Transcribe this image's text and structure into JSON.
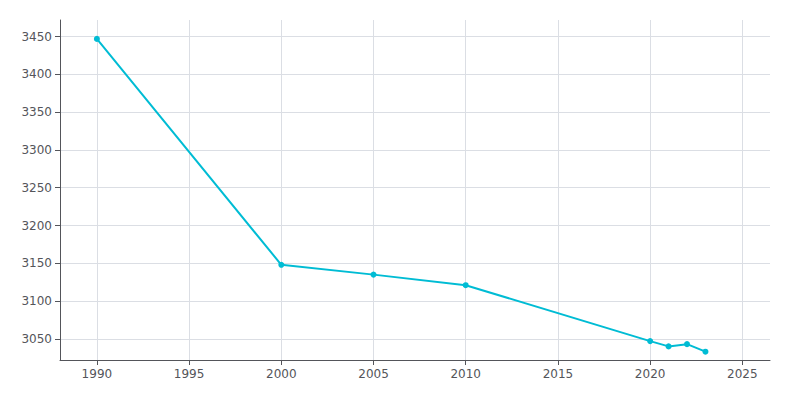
{
  "chart_data": {
    "type": "line",
    "x": [
      1990,
      2000,
      2005,
      2010,
      2020,
      2021,
      2022,
      2023
    ],
    "values": [
      3447,
      3148,
      3135,
      3121,
      3047,
      3040,
      3043,
      3033
    ],
    "color": "#00BCD4",
    "marker": "circle",
    "xlim": [
      1988,
      2026.5
    ],
    "xticks": [
      1990,
      1995,
      2000,
      2005,
      2010,
      2015,
      2020,
      2025
    ],
    "ylim": [
      3022,
      3472
    ],
    "yticks": [
      3050,
      3100,
      3150,
      3200,
      3250,
      3300,
      3350,
      3400,
      3450
    ],
    "grid": true
  }
}
